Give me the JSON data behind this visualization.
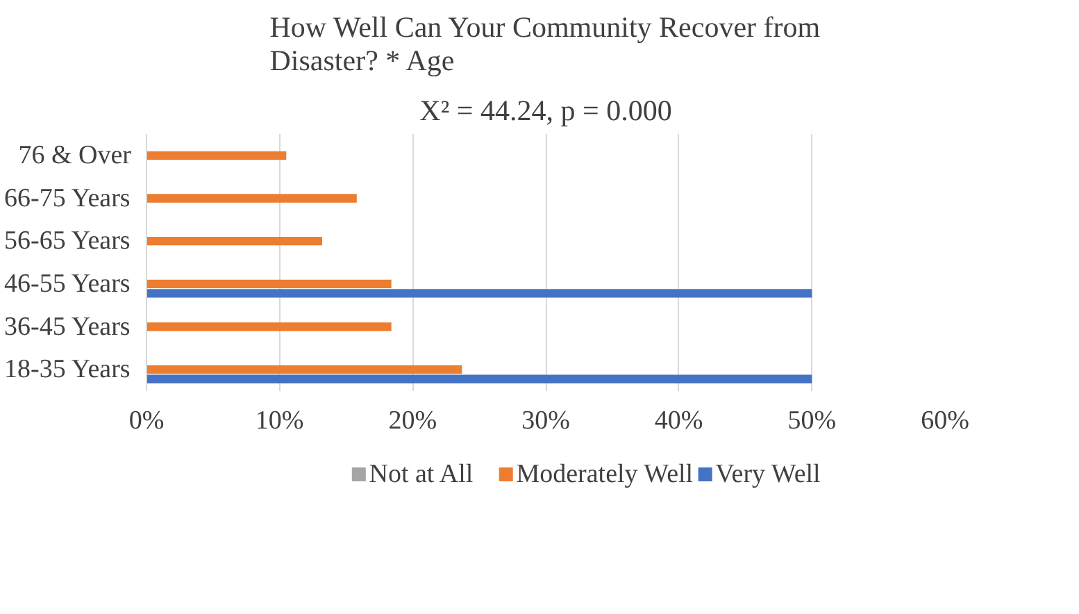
{
  "chart_data": {
    "type": "bar",
    "orientation": "horizontal",
    "title": "How Well Can Your Community Recover from Disaster? * Age",
    "subtitle": "X² = 44.24, p = 0.000",
    "categories": [
      "76 & Over",
      "66-75 Years",
      "56-65 Years",
      "46-55 Years",
      "36-45 Years",
      "18-35 Years"
    ],
    "series": [
      {
        "name": "Not at All",
        "color": "#a5a5a5",
        "values": [
          0,
          0,
          0,
          0,
          0,
          0
        ]
      },
      {
        "name": "Moderately Well",
        "color": "#ed7d31",
        "values": [
          10.5,
          15.8,
          13.2,
          18.4,
          18.4,
          23.7
        ]
      },
      {
        "name": "Very Well",
        "color": "#4472c4",
        "values": [
          0,
          0,
          0,
          50,
          0,
          50
        ]
      }
    ],
    "xlim": [
      0,
      60
    ],
    "xticks": [
      {
        "value": 0,
        "label": "0%"
      },
      {
        "value": 10,
        "label": "10%"
      },
      {
        "value": 20,
        "label": "20%"
      },
      {
        "value": 30,
        "label": "30%"
      },
      {
        "value": 40,
        "label": "40%"
      },
      {
        "value": 50,
        "label": "50%"
      },
      {
        "value": 60,
        "label": "60%"
      }
    ],
    "grid": "x",
    "legend": "bottom"
  }
}
